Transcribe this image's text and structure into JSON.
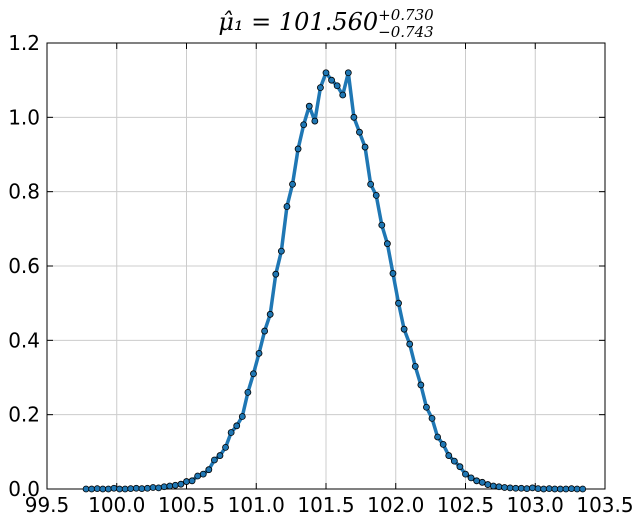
{
  "chart_data": {
    "type": "line",
    "title": "μ̂₁ = 101.560",
    "title_upper": "+0.730",
    "title_lower": "−0.743",
    "x": [
      99.78,
      99.82,
      99.86,
      99.9,
      99.94,
      99.98,
      100.02,
      100.06,
      100.1,
      100.14,
      100.18,
      100.22,
      100.26,
      100.3,
      100.34,
      100.38,
      100.42,
      100.46,
      100.5,
      100.54,
      100.58,
      100.62,
      100.66,
      100.7,
      100.74,
      100.78,
      100.82,
      100.86,
      100.9,
      100.94,
      100.98,
      101.02,
      101.06,
      101.1,
      101.14,
      101.18,
      101.22,
      101.26,
      101.3,
      101.34,
      101.38,
      101.42,
      101.46,
      101.5,
      101.54,
      101.58,
      101.62,
      101.66,
      101.7,
      101.74,
      101.78,
      101.82,
      101.86,
      101.9,
      101.94,
      101.98,
      102.02,
      102.06,
      102.1,
      102.14,
      102.18,
      102.22,
      102.26,
      102.3,
      102.34,
      102.38,
      102.42,
      102.46,
      102.5,
      102.54,
      102.58,
      102.62,
      102.66,
      102.7,
      102.74,
      102.78,
      102.82,
      102.86,
      102.9,
      102.94,
      102.98,
      103.02,
      103.06,
      103.1,
      103.14,
      103.18,
      103.22,
      103.26,
      103.3,
      103.34
    ],
    "values": [
      0,
      0,
      0.001,
      0,
      0,
      0.002,
      0,
      0,
      0.001,
      0.002,
      0.001,
      0.002,
      0.004,
      0.003,
      0.006,
      0.008,
      0.01,
      0.013,
      0.02,
      0.022,
      0.035,
      0.04,
      0.052,
      0.078,
      0.09,
      0.112,
      0.152,
      0.17,
      0.195,
      0.26,
      0.31,
      0.365,
      0.425,
      0.47,
      0.578,
      0.64,
      0.76,
      0.82,
      0.915,
      0.98,
      1.03,
      0.99,
      1.08,
      1.12,
      1.1,
      1.085,
      1.06,
      1.12,
      1.0,
      0.96,
      0.92,
      0.82,
      0.79,
      0.71,
      0.66,
      0.58,
      0.5,
      0.43,
      0.39,
      0.33,
      0.28,
      0.22,
      0.19,
      0.14,
      0.12,
      0.09,
      0.075,
      0.06,
      0.04,
      0.03,
      0.022,
      0.018,
      0.012,
      0.008,
      0.006,
      0.004,
      0.003,
      0.002,
      0.002,
      0.001,
      0.003,
      0.001,
      0,
      0.001,
      0,
      0,
      0,
      0.001,
      0,
      0
    ],
    "color": "#1f77b4",
    "xlim": [
      99.5,
      103.5
    ],
    "xticks": [
      {
        "value": 99.5,
        "label": "99.5"
      },
      {
        "value": 100,
        "label": "100.0"
      },
      {
        "value": 100.5,
        "label": "100.5"
      },
      {
        "value": 101,
        "label": "101.0"
      },
      {
        "value": 101.5,
        "label": "101.5"
      },
      {
        "value": 102,
        "label": "102.0"
      },
      {
        "value": 102.5,
        "label": "102.5"
      },
      {
        "value": 103,
        "label": "103.0"
      },
      {
        "value": 103.5,
        "label": "103.5"
      }
    ],
    "ylim": [
      0,
      1.2
    ],
    "yticks": [
      {
        "value": 0,
        "label": "0.0"
      },
      0.2,
      0.4,
      0.6,
      0.8,
      {
        "value": 1,
        "label": "1.0"
      },
      1.2
    ],
    "grid": true
  }
}
